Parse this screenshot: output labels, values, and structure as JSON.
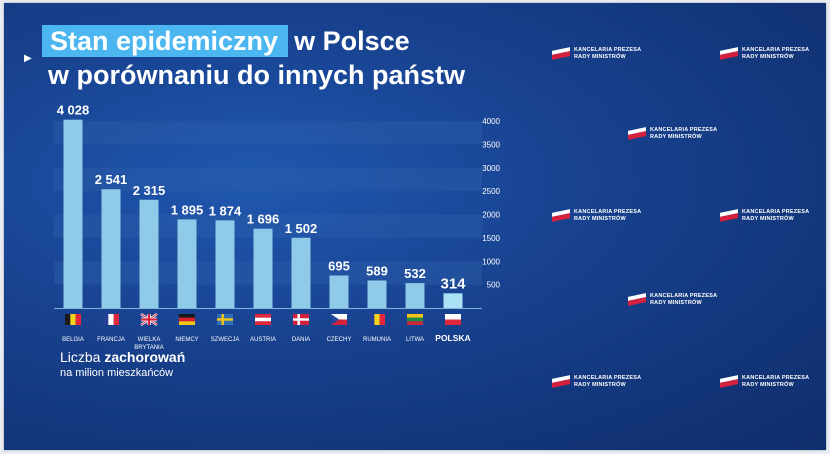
{
  "title": {
    "highlight": "Stan epidemiczny",
    "rest": "w Polsce",
    "line2": "w porównaniu do innych państw"
  },
  "subtitle": {
    "prefix": "Liczba ",
    "bold": "zachorowań",
    "line2": "na milion mieszkańców"
  },
  "logo": {
    "line1": "KANCELARIA PREZESA",
    "line2": "RADY MINISTRÓW",
    "count": 8
  },
  "colors": {
    "background": "#173d86",
    "bar": "#8fcbe8",
    "highlight_bar": "#a9e2f7",
    "title_highlight": "#4bb6f0"
  },
  "chart_data": {
    "type": "bar",
    "categories": [
      "BELGIA",
      "FRANCJA",
      "WIELKA BRYTANIA",
      "NIEMCY",
      "SZWECJA",
      "AUSTRIA",
      "DANIA",
      "CZECHY",
      "RUMUNIA",
      "LITWA",
      "POLSKA"
    ],
    "values": [
      4028,
      2541,
      2315,
      1895,
      1874,
      1696,
      1502,
      695,
      589,
      532,
      314
    ],
    "value_labels": [
      "4 028",
      "2 541",
      "2 315",
      "1 895",
      "1 874",
      "1 696",
      "1 502",
      "695",
      "589",
      "532",
      "314"
    ],
    "flags": [
      "belgium",
      "france",
      "united-kingdom",
      "germany",
      "sweden",
      "austria",
      "denmark",
      "czechia",
      "romania",
      "lithuania",
      "poland"
    ],
    "highlighted": "POLSKA",
    "yticks": [
      500,
      1000,
      1500,
      2000,
      2500,
      3000,
      3500,
      4000
    ],
    "ylim": [
      0,
      4000
    ],
    "y_axis_side": "right",
    "grid": "horizontal bands"
  }
}
